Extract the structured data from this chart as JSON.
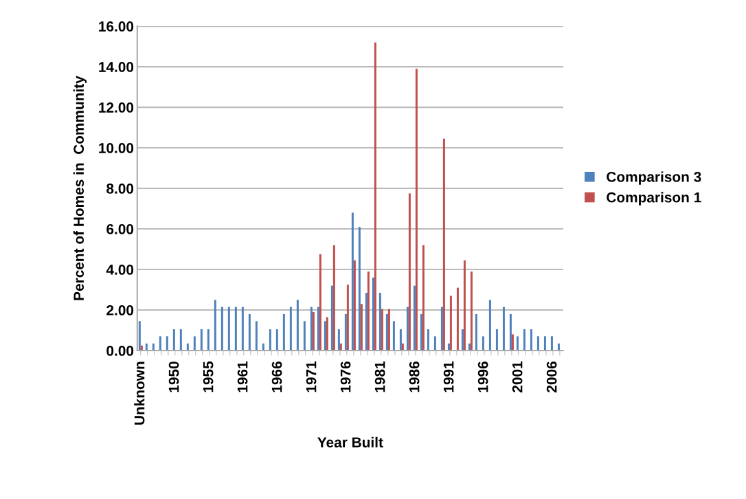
{
  "chart_data": {
    "type": "bar",
    "xlabel": "Year Built",
    "ylabel": "Percent of Homes in  Community",
    "categories": [
      "Unknown",
      null,
      null,
      null,
      null,
      "1950",
      null,
      null,
      null,
      null,
      "1955",
      null,
      null,
      null,
      null,
      "1961",
      null,
      null,
      null,
      null,
      "1966",
      null,
      null,
      null,
      null,
      "1971",
      null,
      null,
      null,
      null,
      "1976",
      null,
      null,
      null,
      null,
      "1981",
      null,
      null,
      null,
      null,
      "1986",
      null,
      null,
      null,
      null,
      "1991",
      null,
      null,
      null,
      null,
      "1996",
      null,
      null,
      null,
      null,
      "2001",
      null,
      null,
      null,
      null,
      "2006",
      null
    ],
    "series": [
      {
        "name": "Comparison 3",
        "color": "#4f81bd",
        "values": [
          1.45,
          0.35,
          0.35,
          0.7,
          0.7,
          1.05,
          1.05,
          0.35,
          0.7,
          1.05,
          1.05,
          2.5,
          2.15,
          2.15,
          2.15,
          2.15,
          1.8,
          1.45,
          0.35,
          1.05,
          1.05,
          1.8,
          2.15,
          2.5,
          1.45,
          2.15,
          2.15,
          1.45,
          3.2,
          1.05,
          1.8,
          6.8,
          6.1,
          2.85,
          3.6,
          2.85,
          1.8,
          1.45,
          1.05,
          2.15,
          3.2,
          1.8,
          1.05,
          0.7,
          2.15,
          0.35,
          null,
          1.05,
          0.35,
          1.8,
          0.7,
          2.5,
          1.05,
          2.15,
          1.8,
          0.7,
          1.05,
          1.05,
          0.7,
          0.7,
          0.7,
          0.35
        ]
      },
      {
        "name": "Comparison 1",
        "color": "#c0504d",
        "values": [
          0.25,
          null,
          null,
          null,
          null,
          null,
          null,
          null,
          null,
          null,
          null,
          null,
          null,
          null,
          null,
          null,
          null,
          null,
          null,
          null,
          null,
          null,
          null,
          null,
          null,
          1.9,
          4.75,
          1.65,
          5.2,
          0.35,
          3.25,
          4.45,
          2.3,
          3.9,
          15.2,
          2.05,
          2.05,
          null,
          0.35,
          7.75,
          13.9,
          5.2,
          null,
          null,
          10.45,
          2.7,
          3.1,
          4.45,
          3.9,
          null,
          null,
          null,
          null,
          null,
          0.8,
          null,
          null,
          null,
          null,
          null,
          null,
          null
        ]
      }
    ],
    "ylim": [
      0,
      16
    ],
    "yticks": [
      {
        "value": 0,
        "label": "0.00"
      },
      {
        "value": 2,
        "label": "2.00"
      },
      {
        "value": 4,
        "label": "4.00"
      },
      {
        "value": 6,
        "label": "6.00"
      },
      {
        "value": 8,
        "label": "8.00"
      },
      {
        "value": 10,
        "label": "10.00"
      },
      {
        "value": 12,
        "label": "12.00"
      },
      {
        "value": 14,
        "label": "14.00"
      },
      {
        "value": 16,
        "label": "16.00"
      }
    ],
    "grid": "y",
    "legend": "right"
  }
}
